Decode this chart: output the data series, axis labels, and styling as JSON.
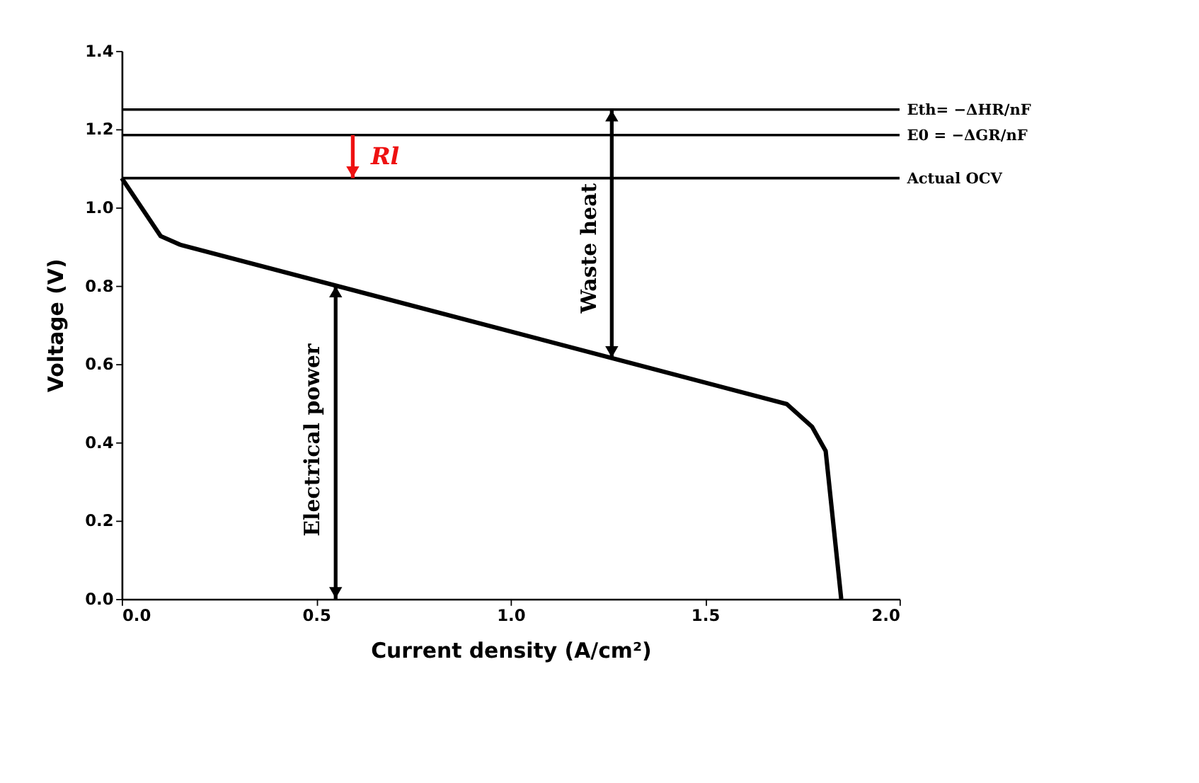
{
  "chart_data": {
    "type": "line",
    "xlabel": "Current density (A/cm²)",
    "ylabel": "Voltage (V)",
    "x": [
      0,
      0.1,
      0.15,
      1.71,
      1.775,
      1.81,
      1.85
    ],
    "values": [
      1.075,
      0.927,
      0.905,
      0.498,
      0.44,
      0.378,
      0
    ],
    "color": "#000000",
    "line_style": "solid",
    "marker": "none",
    "xlim": [
      0,
      2.0
    ],
    "xticks": [
      {
        "value": 0,
        "label": "0.0"
      },
      0.5,
      {
        "value": 1,
        "label": "1.0"
      },
      1.5,
      {
        "value": 2,
        "label": "2.0"
      }
    ],
    "ylim": [
      0,
      1.4
    ],
    "yticks": [
      {
        "value": 0,
        "label": "0.0"
      },
      0.2,
      0.4,
      0.6,
      0.8,
      {
        "value": 1,
        "label": "1.0"
      },
      1.2,
      1.4
    ],
    "ref_lines": [
      {
        "axis": "y",
        "value": 1.25,
        "label": "Eth= −ΔHR/nF",
        "color": "#000000"
      },
      {
        "axis": "y",
        "value": 1.185,
        "label": "E0 = −ΔGR/nF",
        "color": "#000000"
      },
      {
        "axis": "y",
        "value": 1.075,
        "label": "Actual OCV",
        "color": "#000000"
      }
    ],
    "annotations": [
      "Electrical power",
      "Waste heat",
      "Rl"
    ],
    "grid": false
  }
}
